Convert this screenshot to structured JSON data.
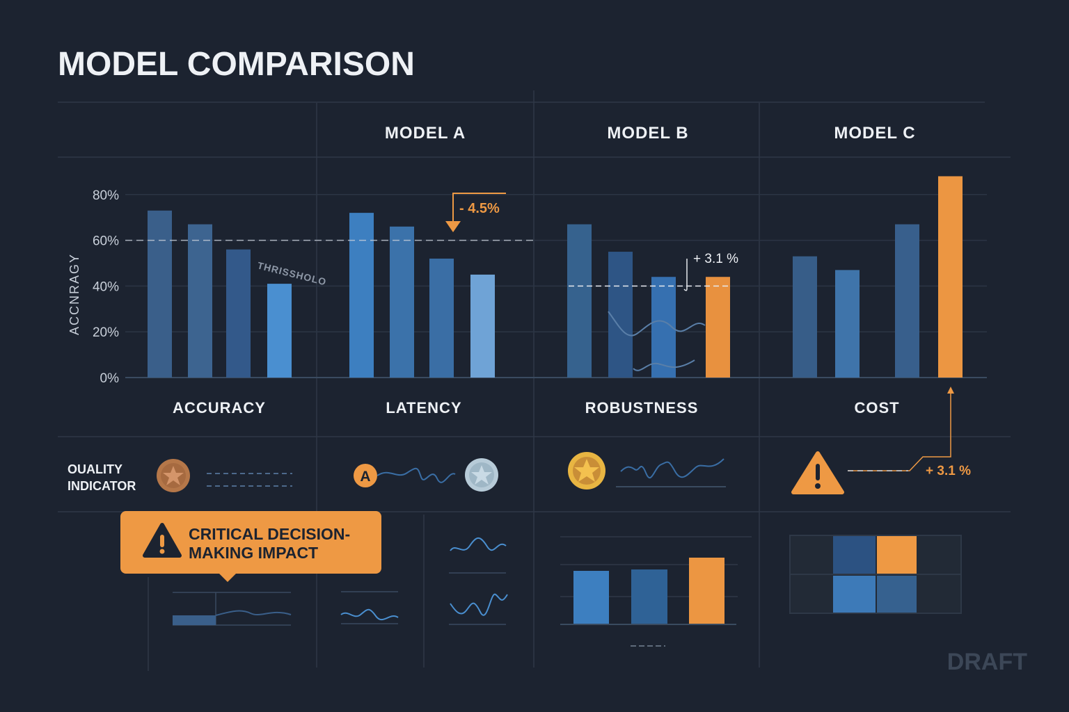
{
  "title": "MODEL COMPARISON",
  "columns": [
    "MODEL A",
    "MODEL B",
    "MODEL C"
  ],
  "colors": {
    "background": "#1c2330",
    "accent_orange": "#ee9944",
    "blue": "#3d7fc0",
    "grid": "#2e3847"
  },
  "chart_data": {
    "type": "bar",
    "ylabel": "ACCNRAGY",
    "ylim": [
      0,
      80
    ],
    "yticks": [
      "0%",
      "20%",
      "40%",
      "60%",
      "80%"
    ],
    "grid": true,
    "categories": [
      "ACCURACY",
      "LATENCY",
      "ROBUSTNESS",
      "COST"
    ],
    "groups": [
      {
        "category": "ACCURACY",
        "values": [
          73,
          67,
          56,
          41
        ],
        "colors": [
          "#3a5f8a",
          "#3d6490",
          "#33598a",
          "#4a8fd0"
        ]
      },
      {
        "category": "LATENCY",
        "values": [
          72,
          66,
          52,
          45
        ],
        "colors": [
          "#3d7fc0",
          "#3b72aa",
          "#3a6ea5",
          "#6fa3d6"
        ]
      },
      {
        "category": "ROBUSTNESS",
        "values": [
          67,
          55,
          44,
          44
        ],
        "colors": [
          "#36628e",
          "#2e5585",
          "#3670b0",
          "#e8913f"
        ]
      },
      {
        "category": "COST",
        "values": [
          53,
          47,
          67,
          88
        ],
        "colors": [
          "#375d88",
          "#3f74aa",
          "#385f8c",
          "#ec9642"
        ]
      }
    ],
    "threshold": {
      "value": 60,
      "label": "THRISSHOLO"
    },
    "annotations": [
      {
        "text": "- 4.5%",
        "category": "LATENCY"
      },
      {
        "text": "+ 3.1 %",
        "category": "ROBUSTNESS",
        "reference_value": 40
      }
    ]
  },
  "quality": {
    "label": "OUALITY INDICATOR",
    "badges": [
      {
        "icon": "bronze-star-medal-icon"
      },
      {
        "icon": "letter-a-badge-icon",
        "text": "A"
      },
      {
        "icon": "silver-star-medal-icon"
      },
      {
        "icon": "gold-star-medal-icon"
      },
      {
        "icon": "warning-triangle-icon"
      }
    ],
    "cost_delta": "+ 3.1 %"
  },
  "callout": {
    "text": "CRITICAL DECISION-MAKING IMPACT",
    "icon": "warning-triangle-icon"
  },
  "watermark": "DRAFT"
}
